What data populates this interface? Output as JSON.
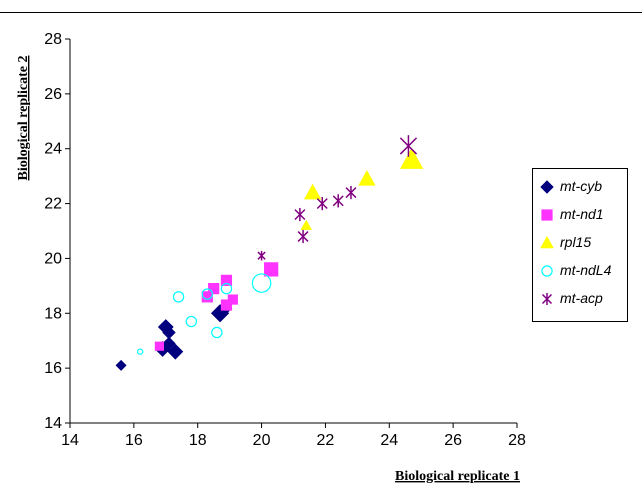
{
  "chart_data": {
    "type": "scatter",
    "title": "",
    "xlabel": "Biological replicate 1",
    "ylabel": "Biological replicate 2",
    "xlim": [
      14,
      28
    ],
    "ylim": [
      14,
      28
    ],
    "xticks": [
      14,
      16,
      18,
      20,
      22,
      24,
      26,
      28
    ],
    "yticks": [
      14,
      16,
      18,
      20,
      22,
      24,
      26,
      28
    ],
    "grid": false,
    "legend_position": "right",
    "series": [
      {
        "name": "mt-cyb",
        "marker": "diamond",
        "color": "#00007f",
        "points": [
          {
            "x": 15.6,
            "y": 16.1,
            "s": 0.8
          },
          {
            "x": 16.9,
            "y": 16.7,
            "s": 1.2
          },
          {
            "x": 17.3,
            "y": 16.6,
            "s": 1.2
          },
          {
            "x": 17.1,
            "y": 16.9,
            "s": 1.0
          },
          {
            "x": 17.0,
            "y": 17.5,
            "s": 1.2
          },
          {
            "x": 17.1,
            "y": 17.3,
            "s": 1.0
          },
          {
            "x": 18.7,
            "y": 18.0,
            "s": 1.4
          },
          {
            "x": 18.8,
            "y": 18.1,
            "s": 1.0
          }
        ]
      },
      {
        "name": "mt-nd1",
        "marker": "square",
        "color": "#ff33ff",
        "points": [
          {
            "x": 16.8,
            "y": 16.8,
            "s": 0.8
          },
          {
            "x": 18.3,
            "y": 18.6,
            "s": 1.0
          },
          {
            "x": 18.5,
            "y": 18.9,
            "s": 1.0
          },
          {
            "x": 18.9,
            "y": 19.2,
            "s": 1.0
          },
          {
            "x": 18.9,
            "y": 18.3,
            "s": 1.0
          },
          {
            "x": 19.1,
            "y": 18.5,
            "s": 0.9
          },
          {
            "x": 20.3,
            "y": 19.6,
            "s": 1.3
          }
        ]
      },
      {
        "name": "rpl15",
        "marker": "triangle",
        "color": "#ffff00",
        "points": [
          {
            "x": 21.4,
            "y": 21.2,
            "s": 0.8
          },
          {
            "x": 21.6,
            "y": 22.4,
            "s": 1.3
          },
          {
            "x": 23.3,
            "y": 22.9,
            "s": 1.3
          },
          {
            "x": 24.7,
            "y": 23.6,
            "s": 1.8
          }
        ]
      },
      {
        "name": "mt-ndL4",
        "marker": "circle",
        "color": "#00ffff",
        "points": [
          {
            "x": 16.2,
            "y": 16.6,
            "s": 0.5
          },
          {
            "x": 17.4,
            "y": 18.6,
            "s": 1.0
          },
          {
            "x": 17.8,
            "y": 17.7,
            "s": 1.0
          },
          {
            "x": 18.3,
            "y": 18.7,
            "s": 1.0
          },
          {
            "x": 18.6,
            "y": 17.3,
            "s": 1.0
          },
          {
            "x": 18.9,
            "y": 18.9,
            "s": 1.0
          },
          {
            "x": 20.0,
            "y": 19.1,
            "s": 1.8
          }
        ]
      },
      {
        "name": "mt-acp",
        "marker": "asterisk",
        "color": "#800080",
        "points": [
          {
            "x": 20.0,
            "y": 20.1,
            "s": 0.8
          },
          {
            "x": 21.2,
            "y": 21.6,
            "s": 1.1
          },
          {
            "x": 21.3,
            "y": 20.8,
            "s": 1.1
          },
          {
            "x": 21.9,
            "y": 22.0,
            "s": 1.1
          },
          {
            "x": 22.4,
            "y": 22.1,
            "s": 1.1
          },
          {
            "x": 22.8,
            "y": 22.4,
            "s": 1.1
          },
          {
            "x": 24.6,
            "y": 24.1,
            "s": 1.8
          }
        ]
      }
    ]
  }
}
